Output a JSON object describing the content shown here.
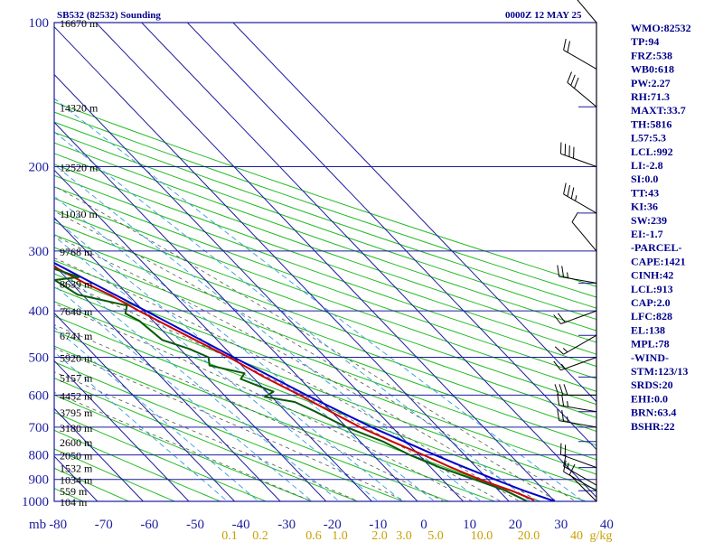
{
  "header": {
    "station_title": "SB532 (82532) Sounding",
    "valid_time": "0000Z 12 MAY 25"
  },
  "indices": [
    "WMO:82532",
    "TP:94",
    "FRZ:538",
    "WB0:618",
    "PW:2.27",
    "RH:71.3",
    "MAXT:33.7",
    "TH:5816",
    "L57:5.3",
    "LCL:992",
    "LI:-2.8",
    "SI:0.0",
    "TT:43",
    "KI:36",
    "SW:239",
    "EI:-1.7",
    "-PARCEL-",
    "CAPE:1421",
    "CINH:42",
    "LCL:913",
    "CAP:2.0",
    "LFC:828",
    "EL:138",
    "MPL:78",
    "-WIND-",
    "STM:123/13",
    "SRDS:20",
    "EHI:0.0",
    "BRN:63.4",
    "BSHR:22"
  ],
  "colors": {
    "isobar": "#1b1ba0",
    "isotherm": "#1b1ba0",
    "dry_adiabat": "#22bb22",
    "moist_adiabat": "#555555",
    "mixing_ratio": "#3399dd",
    "temperature": "#cc0000",
    "dewpoint": "#0a5a0a",
    "parcel": "#0000cc",
    "wind": "#000000",
    "indices_text": "#00008b",
    "mixing_label": "#c8a000"
  },
  "chart_data": {
    "type": "skew-t",
    "title": "SB532 (82532) Sounding",
    "subtitle": "0000Z 12 MAY 25",
    "pressure_unit": "mb",
    "pressure_range": [
      1000,
      100
    ],
    "temperature_range": [
      -80,
      40
    ],
    "pressure_levels": [
      100,
      200,
      300,
      400,
      500,
      600,
      700,
      800,
      900,
      1000
    ],
    "pressure_ticks": [
      "100",
      "200",
      "300",
      "400",
      "500",
      "600",
      "700",
      "800",
      "900",
      "1000"
    ],
    "temperature_ticks": [
      "-80",
      "-70",
      "-60",
      "-50",
      "-40",
      "-30",
      "-20",
      "-10",
      "0",
      "10",
      "20",
      "30",
      "40"
    ],
    "mixing_ratio_labels": [
      "0.1",
      "0.2",
      "0.6",
      "1.0",
      "2.0",
      "3.0",
      "5.0",
      "10.0",
      "20.0",
      "40",
      "g/kg"
    ],
    "height_labels": [
      {
        "p": 1000,
        "text": "104 m"
      },
      {
        "p": 950,
        "text": "559 m"
      },
      {
        "p": 900,
        "text": "1034 m"
      },
      {
        "p": 850,
        "text": "1532 m"
      },
      {
        "p": 800,
        "text": "2050 m"
      },
      {
        "p": 750,
        "text": "2600 m"
      },
      {
        "p": 700,
        "text": "3180 m"
      },
      {
        "p": 650,
        "text": "3795 m"
      },
      {
        "p": 600,
        "text": "4452 m"
      },
      {
        "p": 550,
        "text": "5157 m"
      },
      {
        "p": 500,
        "text": "5920 m"
      },
      {
        "p": 450,
        "text": "6741 m"
      },
      {
        "p": 400,
        "text": "7640 m"
      },
      {
        "p": 350,
        "text": "8639 m"
      },
      {
        "p": 300,
        "text": "9768 m"
      },
      {
        "p": 250,
        "text": "11030 m"
      },
      {
        "p": 200,
        "text": "12520 m"
      },
      {
        "p": 150,
        "text": "14320 m"
      },
      {
        "p": 100,
        "text": "16670 m"
      }
    ],
    "temperature": [
      [
        1000,
        25.5
      ],
      [
        990,
        25.5
      ],
      [
        950,
        22.8
      ],
      [
        925,
        20.5
      ],
      [
        900,
        18.2
      ],
      [
        850,
        14.5
      ],
      [
        800,
        11.0
      ],
      [
        750,
        7.0
      ],
      [
        700,
        3.0
      ],
      [
        650,
        -0.2
      ],
      [
        600,
        -3.5
      ],
      [
        550,
        -7.5
      ],
      [
        500,
        -11.0
      ],
      [
        450,
        -15.8
      ],
      [
        400,
        -21.0
      ],
      [
        370,
        -24.0
      ],
      [
        350,
        -27.0
      ],
      [
        300,
        -33.5
      ],
      [
        250,
        -42.0
      ],
      [
        200,
        -52.5
      ],
      [
        175,
        -58.5
      ],
      [
        150,
        -64.5
      ],
      [
        125,
        -71.0
      ],
      [
        100,
        -77.5
      ]
    ],
    "dewpoint": [
      [
        1000,
        24.0
      ],
      [
        980,
        23.0
      ],
      [
        950,
        21.5
      ],
      [
        900,
        17.0
      ],
      [
        850,
        12.0
      ],
      [
        800,
        8.0
      ],
      [
        750,
        5.0
      ],
      [
        700,
        0.0
      ],
      [
        650,
        -3.5
      ],
      [
        620,
        -6.0
      ],
      [
        605,
        -11.5
      ],
      [
        590,
        -8.5
      ],
      [
        575,
        -10.5
      ],
      [
        555,
        -13.0
      ],
      [
        540,
        -11.0
      ],
      [
        520,
        -17.0
      ],
      [
        500,
        -15.5
      ],
      [
        480,
        -18.0
      ],
      [
        460,
        -22.0
      ],
      [
        420,
        -23.0
      ],
      [
        405,
        -24.5
      ],
      [
        390,
        -22.5
      ],
      [
        370,
        -31.0
      ],
      [
        345,
        -33.0
      ],
      [
        340,
        -27.0
      ],
      [
        300,
        -39.0
      ],
      [
        260,
        -47.0
      ],
      [
        250,
        -45.5
      ],
      [
        245,
        -42.5
      ],
      [
        225,
        -48.0
      ],
      [
        205,
        -48.5
      ],
      [
        195,
        -52.5
      ],
      [
        175,
        -58.5
      ],
      [
        160,
        -59.5
      ],
      [
        145,
        -66.0
      ],
      [
        130,
        -68.0
      ],
      [
        115,
        -71.5
      ],
      [
        100,
        -81.0
      ]
    ],
    "parcel": [
      [
        1000,
        30.0
      ],
      [
        950,
        25.5
      ],
      [
        913,
        22.5
      ],
      [
        900,
        21.5
      ],
      [
        850,
        17.5
      ],
      [
        828,
        15.8
      ],
      [
        800,
        13.5
      ],
      [
        700,
        5.5
      ],
      [
        600,
        -2.0
      ],
      [
        500,
        -10.0
      ],
      [
        400,
        -19.5
      ],
      [
        300,
        -32.0
      ],
      [
        250,
        -40.5
      ],
      [
        200,
        -51.5
      ],
      [
        150,
        -63.5
      ],
      [
        100,
        -77.5
      ]
    ],
    "wind_levels": [
      {
        "p": 1000,
        "dir": 315,
        "speed": 10
      },
      {
        "p": 950,
        "dir": 300,
        "speed": 10
      },
      {
        "p": 925,
        "dir": 300,
        "speed": 15
      },
      {
        "p": 850,
        "dir": 290,
        "speed": 20
      },
      {
        "p": 700,
        "dir": 280,
        "speed": 25
      },
      {
        "p": 650,
        "dir": 280,
        "speed": 25
      },
      {
        "p": 600,
        "dir": 270,
        "speed": 30
      },
      {
        "p": 500,
        "dir": 250,
        "speed": 15
      },
      {
        "p": 450,
        "dir": 240,
        "speed": 15
      },
      {
        "p": 400,
        "dir": 250,
        "speed": 20
      },
      {
        "p": 350,
        "dir": 280,
        "speed": 25
      },
      {
        "p": 300,
        "dir": 320,
        "speed": 10
      },
      {
        "p": 250,
        "dir": 300,
        "speed": 35
      },
      {
        "p": 200,
        "dir": 290,
        "speed": 40
      },
      {
        "p": 150,
        "dir": 310,
        "speed": 30
      },
      {
        "p": 125,
        "dir": 300,
        "speed": 20
      },
      {
        "p": 100,
        "dir": 320,
        "speed": 25
      }
    ]
  }
}
